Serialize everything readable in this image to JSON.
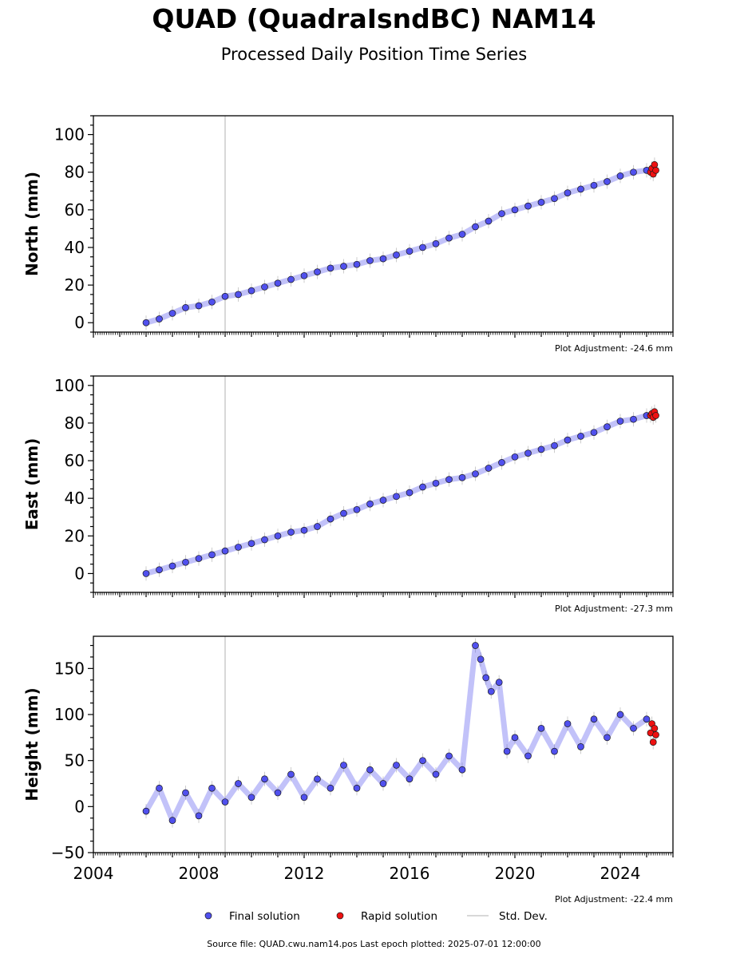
{
  "title": "QUAD (QuadraIsndBC) NAM14",
  "subtitle": "Processed Daily Position Time Series",
  "source_note": "Source file: QUAD.cwu.nam14.pos  Last epoch plotted: 2025-07-01 12:00:00",
  "colors": {
    "final": "#5050ee",
    "rapid": "#ee1111",
    "stddev": "#cccccc",
    "marker_edge": "#1a1a1a"
  },
  "legend": {
    "final_label": "Final solution",
    "rapid_label": "Rapid solution",
    "std_label": "Std. Dev."
  },
  "chart_data": [
    {
      "type": "scatter",
      "ylabel": "North (mm)",
      "adjustment": "Plot Adjustment: -24.6 mm",
      "xlim": [
        2004,
        2026
      ],
      "ylim": [
        -5,
        110
      ],
      "yticks": [
        0,
        20,
        40,
        60,
        80,
        100
      ],
      "x_tick_labels": [],
      "event_line": 2009.0,
      "series": [
        {
          "name": "Final solution",
          "x": [
            2006.0,
            2006.5,
            2007.0,
            2007.5,
            2008.0,
            2008.5,
            2009.0,
            2009.5,
            2010.0,
            2010.5,
            2011.0,
            2011.5,
            2012.0,
            2012.5,
            2013.0,
            2013.5,
            2014.0,
            2014.5,
            2015.0,
            2015.5,
            2016.0,
            2016.5,
            2017.0,
            2017.5,
            2018.0,
            2018.5,
            2019.0,
            2019.5,
            2020.0,
            2020.5,
            2021.0,
            2021.5,
            2022.0,
            2022.5,
            2023.0,
            2023.5,
            2024.0,
            2024.5,
            2025.0
          ],
          "y": [
            0,
            2,
            5,
            8,
            9,
            11,
            14,
            15,
            17,
            19,
            21,
            23,
            25,
            27,
            29,
            30,
            31,
            33,
            34,
            36,
            38,
            40,
            42,
            45,
            47,
            51,
            54,
            58,
            60,
            62,
            64,
            66,
            69,
            71,
            73,
            75,
            78,
            80,
            81
          ]
        },
        {
          "name": "Rapid solution",
          "x": [
            2025.15,
            2025.2,
            2025.25,
            2025.3,
            2025.35
          ],
          "y": [
            80,
            82,
            79,
            84,
            81
          ]
        }
      ]
    },
    {
      "type": "scatter",
      "ylabel": "East (mm)",
      "adjustment": "Plot Adjustment: -27.3 mm",
      "xlim": [
        2004,
        2026
      ],
      "ylim": [
        -10,
        105
      ],
      "yticks": [
        0,
        20,
        40,
        60,
        80,
        100
      ],
      "x_tick_labels": [],
      "event_line": 2009.0,
      "series": [
        {
          "name": "Final solution",
          "x": [
            2006.0,
            2006.5,
            2007.0,
            2007.5,
            2008.0,
            2008.5,
            2009.0,
            2009.5,
            2010.0,
            2010.5,
            2011.0,
            2011.5,
            2012.0,
            2012.5,
            2013.0,
            2013.5,
            2014.0,
            2014.5,
            2015.0,
            2015.5,
            2016.0,
            2016.5,
            2017.0,
            2017.5,
            2018.0,
            2018.5,
            2019.0,
            2019.5,
            2020.0,
            2020.5,
            2021.0,
            2021.5,
            2022.0,
            2022.5,
            2023.0,
            2023.5,
            2024.0,
            2024.5,
            2025.0
          ],
          "y": [
            0,
            2,
            4,
            6,
            8,
            10,
            12,
            14,
            16,
            18,
            20,
            22,
            23,
            25,
            29,
            32,
            34,
            37,
            39,
            41,
            43,
            46,
            48,
            50,
            51,
            53,
            56,
            59,
            62,
            64,
            66,
            68,
            71,
            73,
            75,
            78,
            81,
            82,
            84
          ]
        },
        {
          "name": "Rapid solution",
          "x": [
            2025.15,
            2025.2,
            2025.25,
            2025.3,
            2025.35
          ],
          "y": [
            84,
            85,
            83,
            86,
            84
          ]
        }
      ]
    },
    {
      "type": "scatter",
      "ylabel": "Height (mm)",
      "adjustment": "Plot Adjustment: -22.4 mm",
      "xlim": [
        2004,
        2026
      ],
      "ylim": [
        -50,
        185
      ],
      "yticks": [
        -50,
        0,
        50,
        100,
        150
      ],
      "x_tick_labels": [
        "2004",
        "2008",
        "2012",
        "2016",
        "2020",
        "2024"
      ],
      "event_line": 2009.0,
      "series": [
        {
          "name": "Final solution",
          "x": [
            2006.0,
            2006.5,
            2007.0,
            2007.5,
            2008.0,
            2008.5,
            2009.0,
            2009.5,
            2010.0,
            2010.5,
            2011.0,
            2011.5,
            2012.0,
            2012.5,
            2013.0,
            2013.5,
            2014.0,
            2014.5,
            2015.0,
            2015.5,
            2016.0,
            2016.5,
            2017.0,
            2017.5,
            2018.0,
            2018.5,
            2018.7,
            2018.9,
            2019.1,
            2019.4,
            2019.7,
            2020.0,
            2020.5,
            2021.0,
            2021.5,
            2022.0,
            2022.5,
            2023.0,
            2023.5,
            2024.0,
            2024.5,
            2025.0
          ],
          "y": [
            -5,
            20,
            -15,
            15,
            -10,
            20,
            5,
            25,
            10,
            30,
            15,
            35,
            10,
            30,
            20,
            45,
            20,
            40,
            25,
            45,
            30,
            50,
            35,
            55,
            40,
            175,
            160,
            140,
            125,
            135,
            60,
            75,
            55,
            85,
            60,
            90,
            65,
            95,
            75,
            100,
            85,
            95
          ]
        },
        {
          "name": "Rapid solution",
          "x": [
            2025.15,
            2025.2,
            2025.25,
            2025.3,
            2025.35
          ],
          "y": [
            80,
            90,
            70,
            85,
            78
          ]
        }
      ]
    }
  ]
}
